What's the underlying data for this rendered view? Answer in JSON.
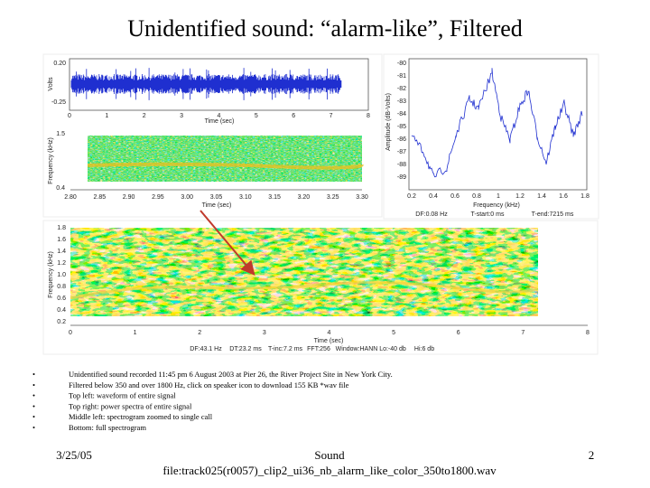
{
  "title": "Unidentified sound: “alarm-like”, Filtered",
  "waveform": {
    "ylabel": "Volts",
    "yticks": [
      "0.20",
      "-0.25"
    ],
    "xticks": [
      "0",
      "1",
      "2",
      "3",
      "4",
      "5",
      "6",
      "7",
      "8"
    ],
    "xlabel": "Time (sec)"
  },
  "zoom_spectrogram": {
    "ylabel": "Frequency (kHz)",
    "yticks": [
      "1.5",
      "0.4"
    ],
    "xticks": [
      "2.80",
      "2.85",
      "2.90",
      "2.95",
      "3.00",
      "3.05",
      "3.10",
      "3.15",
      "3.20",
      "3.25",
      "3.30"
    ],
    "xlabel": "Time (sec)"
  },
  "power_spectrum": {
    "ylabel": "Amplitude (dB-Volts)",
    "yticks": [
      "-80",
      "-81",
      "-82",
      "-83",
      "-84",
      "-85",
      "-86",
      "-87",
      "-88",
      "-89"
    ],
    "xticks": [
      "0.2",
      "0.4",
      "0.6",
      "0.8",
      "1",
      "1.2",
      "1.4",
      "1.6",
      "1.8"
    ],
    "xlabel": "Frequency (kHz)",
    "footer": [
      "DF:0.08 Hz",
      "T-start:0 ms",
      "T-end:7215 ms"
    ]
  },
  "full_spectrogram": {
    "ylabel": "Frequency (kHz)",
    "yticks": [
      "1.8",
      "1.6",
      "1.4",
      "1.2",
      "1.0",
      "0.8",
      "0.6",
      "0.4",
      "0.2"
    ],
    "xticks": [
      "0",
      "1",
      "2",
      "3",
      "4",
      "5",
      "6",
      "7",
      "8"
    ],
    "xlabel": "Time (sec)",
    "footer": [
      "DF:43.1 Hz",
      "DT:23.2 ms",
      "T-inc:7.2 ms",
      "FFT:256",
      "Window:HANN",
      "Lo:-40 db",
      "Hi:6 db"
    ]
  },
  "bullets": [
    "Unidentified sound recorded 11:45 pm 6 August 2003 at Pier 26, the River Project Site in New York City.",
    "Filtered below 350 and over 1800 Hz, click on speaker icon to download 155 KB *wav file",
    "Top left: waveform of entire signal",
    "Top right: power spectra of entire signal",
    "Middle left: spectrogram zoomed to single call",
    "Bottom: full spectrogram"
  ],
  "footer": {
    "date": "3/25/05",
    "line1": "Sound",
    "line2": "file:track025(r0057)_clip2_ui36_nb_alarm_like_color_350to1800.wav",
    "page": "2"
  }
}
